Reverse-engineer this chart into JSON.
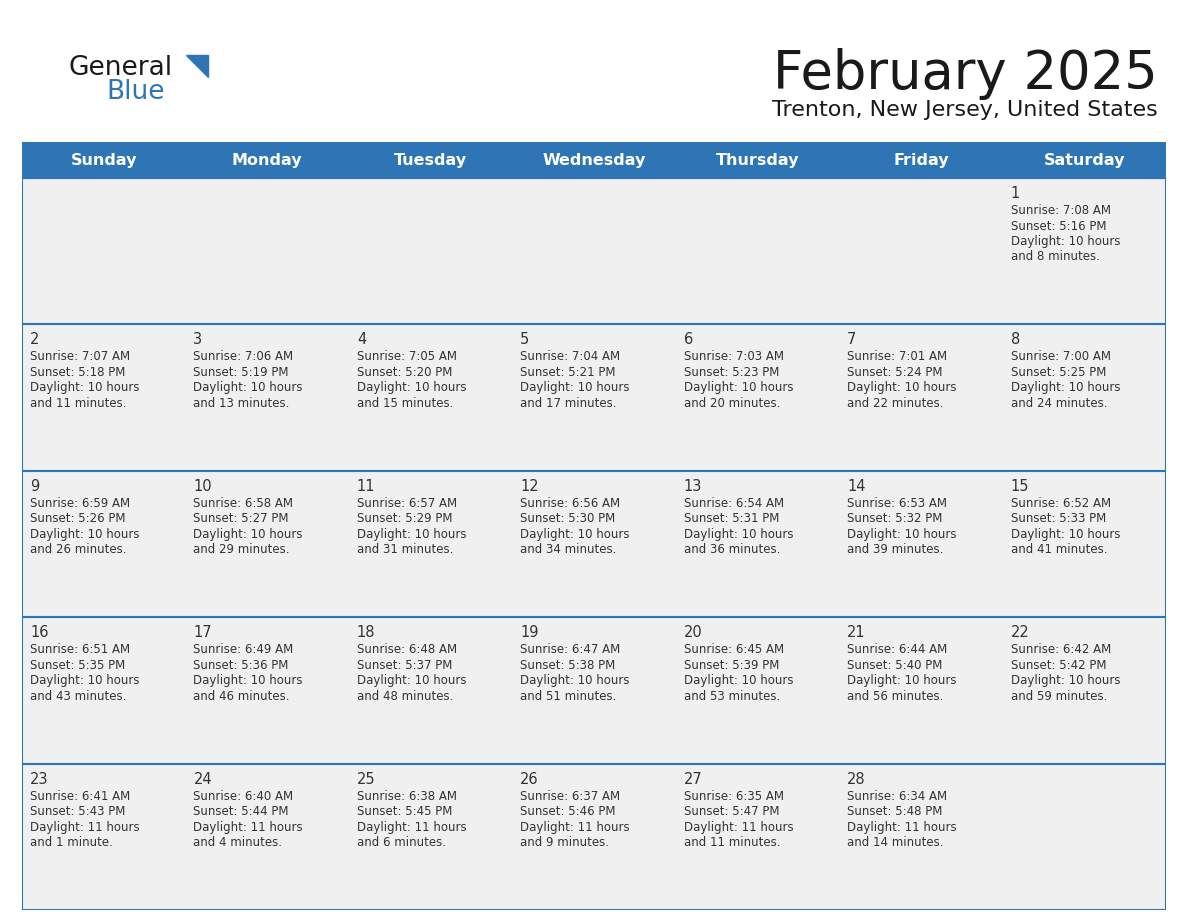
{
  "title": "February 2025",
  "subtitle": "Trenton, New Jersey, United States",
  "days_of_week": [
    "Sunday",
    "Monday",
    "Tuesday",
    "Wednesday",
    "Thursday",
    "Friday",
    "Saturday"
  ],
  "header_bg": "#2E75B6",
  "header_text_color": "#FFFFFF",
  "cell_bg": "#F0F0F0",
  "border_color": "#2E75B6",
  "text_color": "#333333",
  "day_number_color": "#333333",
  "logo_general_color": "#222222",
  "logo_blue_color": "#2E75B6",
  "calendar_data": [
    {
      "day": 1,
      "row": 0,
      "col": 6,
      "sunrise": "7:08 AM",
      "sunset": "5:16 PM",
      "daylight": "10 hours and 8 minutes"
    },
    {
      "day": 2,
      "row": 1,
      "col": 0,
      "sunrise": "7:07 AM",
      "sunset": "5:18 PM",
      "daylight": "10 hours and 11 minutes"
    },
    {
      "day": 3,
      "row": 1,
      "col": 1,
      "sunrise": "7:06 AM",
      "sunset": "5:19 PM",
      "daylight": "10 hours and 13 minutes"
    },
    {
      "day": 4,
      "row": 1,
      "col": 2,
      "sunrise": "7:05 AM",
      "sunset": "5:20 PM",
      "daylight": "10 hours and 15 minutes"
    },
    {
      "day": 5,
      "row": 1,
      "col": 3,
      "sunrise": "7:04 AM",
      "sunset": "5:21 PM",
      "daylight": "10 hours and 17 minutes"
    },
    {
      "day": 6,
      "row": 1,
      "col": 4,
      "sunrise": "7:03 AM",
      "sunset": "5:23 PM",
      "daylight": "10 hours and 20 minutes"
    },
    {
      "day": 7,
      "row": 1,
      "col": 5,
      "sunrise": "7:01 AM",
      "sunset": "5:24 PM",
      "daylight": "10 hours and 22 minutes"
    },
    {
      "day": 8,
      "row": 1,
      "col": 6,
      "sunrise": "7:00 AM",
      "sunset": "5:25 PM",
      "daylight": "10 hours and 24 minutes"
    },
    {
      "day": 9,
      "row": 2,
      "col": 0,
      "sunrise": "6:59 AM",
      "sunset": "5:26 PM",
      "daylight": "10 hours and 26 minutes"
    },
    {
      "day": 10,
      "row": 2,
      "col": 1,
      "sunrise": "6:58 AM",
      "sunset": "5:27 PM",
      "daylight": "10 hours and 29 minutes"
    },
    {
      "day": 11,
      "row": 2,
      "col": 2,
      "sunrise": "6:57 AM",
      "sunset": "5:29 PM",
      "daylight": "10 hours and 31 minutes"
    },
    {
      "day": 12,
      "row": 2,
      "col": 3,
      "sunrise": "6:56 AM",
      "sunset": "5:30 PM",
      "daylight": "10 hours and 34 minutes"
    },
    {
      "day": 13,
      "row": 2,
      "col": 4,
      "sunrise": "6:54 AM",
      "sunset": "5:31 PM",
      "daylight": "10 hours and 36 minutes"
    },
    {
      "day": 14,
      "row": 2,
      "col": 5,
      "sunrise": "6:53 AM",
      "sunset": "5:32 PM",
      "daylight": "10 hours and 39 minutes"
    },
    {
      "day": 15,
      "row": 2,
      "col": 6,
      "sunrise": "6:52 AM",
      "sunset": "5:33 PM",
      "daylight": "10 hours and 41 minutes"
    },
    {
      "day": 16,
      "row": 3,
      "col": 0,
      "sunrise": "6:51 AM",
      "sunset": "5:35 PM",
      "daylight": "10 hours and 43 minutes"
    },
    {
      "day": 17,
      "row": 3,
      "col": 1,
      "sunrise": "6:49 AM",
      "sunset": "5:36 PM",
      "daylight": "10 hours and 46 minutes"
    },
    {
      "day": 18,
      "row": 3,
      "col": 2,
      "sunrise": "6:48 AM",
      "sunset": "5:37 PM",
      "daylight": "10 hours and 48 minutes"
    },
    {
      "day": 19,
      "row": 3,
      "col": 3,
      "sunrise": "6:47 AM",
      "sunset": "5:38 PM",
      "daylight": "10 hours and 51 minutes"
    },
    {
      "day": 20,
      "row": 3,
      "col": 4,
      "sunrise": "6:45 AM",
      "sunset": "5:39 PM",
      "daylight": "10 hours and 53 minutes"
    },
    {
      "day": 21,
      "row": 3,
      "col": 5,
      "sunrise": "6:44 AM",
      "sunset": "5:40 PM",
      "daylight": "10 hours and 56 minutes"
    },
    {
      "day": 22,
      "row": 3,
      "col": 6,
      "sunrise": "6:42 AM",
      "sunset": "5:42 PM",
      "daylight": "10 hours and 59 minutes"
    },
    {
      "day": 23,
      "row": 4,
      "col": 0,
      "sunrise": "6:41 AM",
      "sunset": "5:43 PM",
      "daylight": "11 hours and 1 minute"
    },
    {
      "day": 24,
      "row": 4,
      "col": 1,
      "sunrise": "6:40 AM",
      "sunset": "5:44 PM",
      "daylight": "11 hours and 4 minutes"
    },
    {
      "day": 25,
      "row": 4,
      "col": 2,
      "sunrise": "6:38 AM",
      "sunset": "5:45 PM",
      "daylight": "11 hours and 6 minutes"
    },
    {
      "day": 26,
      "row": 4,
      "col": 3,
      "sunrise": "6:37 AM",
      "sunset": "5:46 PM",
      "daylight": "11 hours and 9 minutes"
    },
    {
      "day": 27,
      "row": 4,
      "col": 4,
      "sunrise": "6:35 AM",
      "sunset": "5:47 PM",
      "daylight": "11 hours and 11 minutes"
    },
    {
      "day": 28,
      "row": 4,
      "col": 5,
      "sunrise": "6:34 AM",
      "sunset": "5:48 PM",
      "daylight": "11 hours and 14 minutes"
    }
  ],
  "num_rows": 5,
  "num_cols": 7,
  "fig_width": 11.88,
  "fig_height": 9.18,
  "dpi": 100
}
